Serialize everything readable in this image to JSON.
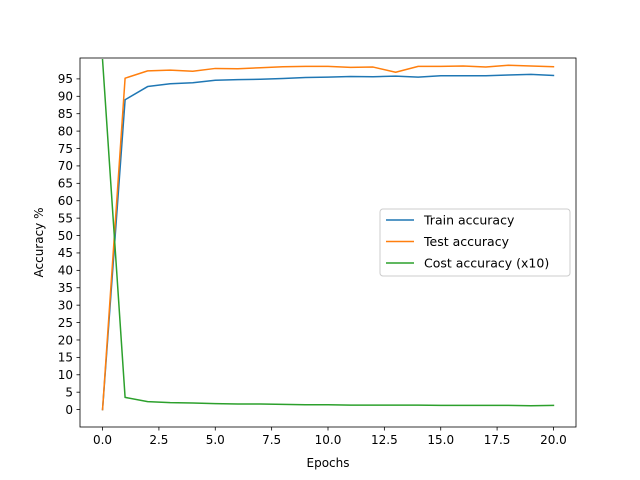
{
  "chart_data": {
    "type": "line",
    "title": "",
    "xlabel": "Epochs",
    "ylabel": "Accuracy %",
    "xlim": [
      -1,
      21
    ],
    "ylim": [
      -5,
      101
    ],
    "xticks": [
      0,
      2.5,
      5,
      7.5,
      10,
      12.5,
      15,
      17.5,
      20
    ],
    "xtick_labels": [
      "0.0",
      "2.5",
      "5.0",
      "7.5",
      "10.0",
      "12.5",
      "15.0",
      "17.5",
      "20.0"
    ],
    "yticks": [
      0,
      5,
      10,
      15,
      20,
      25,
      30,
      35,
      40,
      45,
      50,
      55,
      60,
      65,
      70,
      75,
      80,
      85,
      90,
      95
    ],
    "ytick_labels": [
      "0",
      "5",
      "10",
      "15",
      "20",
      "25",
      "30",
      "35",
      "40",
      "45",
      "50",
      "55",
      "60",
      "65",
      "70",
      "75",
      "80",
      "85",
      "90",
      "95"
    ],
    "grid": false,
    "legend_position": "center-right",
    "x": [
      0,
      1,
      2,
      3,
      4,
      5,
      6,
      7,
      8,
      9,
      10,
      11,
      12,
      13,
      14,
      15,
      16,
      17,
      18,
      19,
      20
    ],
    "series": [
      {
        "name": "Train accuracy",
        "color": "#1f77b4",
        "values": [
          0,
          89.0,
          92.8,
          93.6,
          93.9,
          94.6,
          94.8,
          94.9,
          95.1,
          95.4,
          95.5,
          95.7,
          95.6,
          95.8,
          95.5,
          95.9,
          95.9,
          95.9,
          96.1,
          96.3,
          96.0
        ]
      },
      {
        "name": "Test accuracy",
        "color": "#ff7f0e",
        "values": [
          0,
          95.2,
          97.3,
          97.5,
          97.2,
          98.0,
          97.9,
          98.2,
          98.5,
          98.6,
          98.6,
          98.3,
          98.4,
          96.9,
          98.6,
          98.6,
          98.7,
          98.4,
          98.9,
          98.7,
          98.5
        ]
      },
      {
        "name": "Cost accuracy (x10)",
        "color": "#2ca02c",
        "values": [
          100.5,
          3.5,
          2.3,
          2.0,
          1.9,
          1.7,
          1.6,
          1.6,
          1.5,
          1.4,
          1.4,
          1.3,
          1.3,
          1.3,
          1.3,
          1.2,
          1.2,
          1.2,
          1.2,
          1.1,
          1.2
        ]
      }
    ]
  }
}
